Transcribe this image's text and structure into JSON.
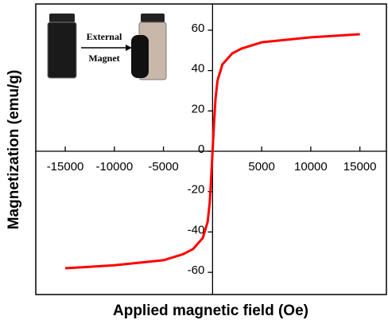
{
  "chart_data": {
    "type": "line",
    "xlabel": "Applied magnetic field (Oe)",
    "ylabel": "Magnetization (emu/g)",
    "annotations": [
      "External",
      "Magnet"
    ],
    "x": [
      -15000,
      -10000,
      -5000,
      -3000,
      -2000,
      -1000,
      -500,
      -300,
      -150,
      0,
      150,
      300,
      500,
      1000,
      2000,
      3000,
      5000,
      10000,
      15000
    ],
    "series": [
      {
        "color": "#ff0000",
        "values": [
          -58,
          -56.5,
          -54,
          -51,
          -48.5,
          -43,
          -35,
          -26,
          -14,
          0,
          14,
          26,
          35,
          43,
          48.5,
          51,
          54,
          56.5,
          58
        ]
      }
    ],
    "xlim": [
      -18000,
      17700
    ],
    "ylim": [
      -71,
      73
    ],
    "xticks": [
      -15000,
      -10000,
      -5000,
      5000,
      10000,
      15000
    ],
    "yticks": [
      -60,
      -40,
      -20,
      0,
      20,
      40,
      60
    ]
  }
}
